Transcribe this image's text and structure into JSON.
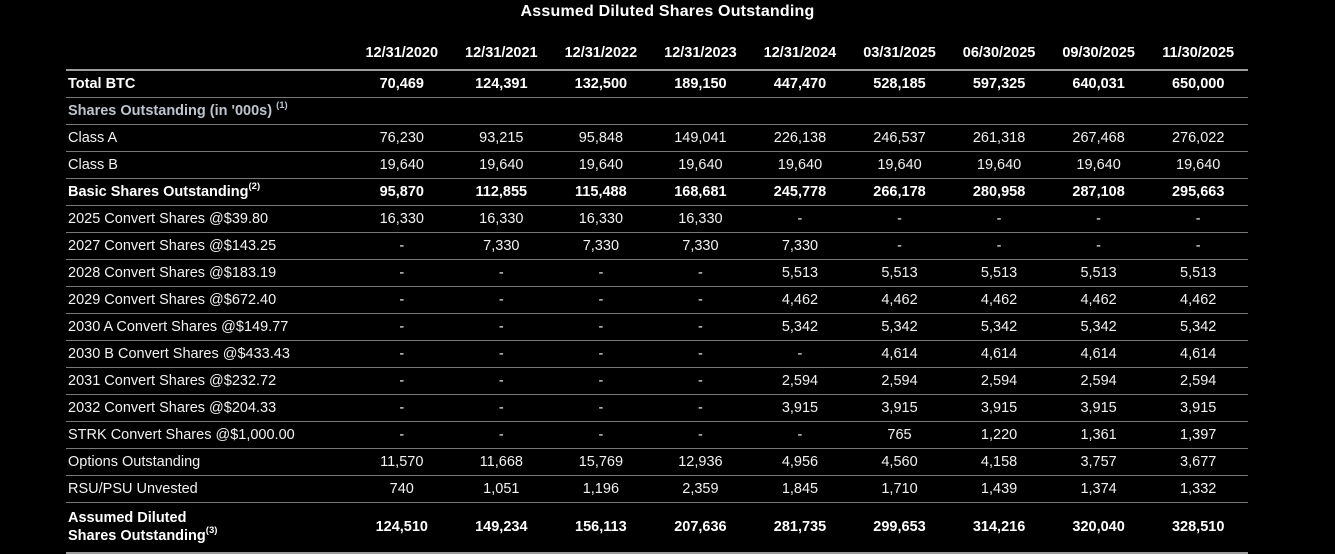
{
  "title": "Assumed Diluted Shares Outstanding",
  "colors": {
    "background": "#000000",
    "text": "#f2f2f2",
    "bold_text": "#ffffff",
    "section_header_text": "#bdc4ce",
    "grid_line": "#787878",
    "header_line": "#9c9c9c"
  },
  "chart_data": {
    "type": "table",
    "title": "Assumed Diluted Shares Outstanding",
    "units_note": "shares in '000s",
    "columns": [
      "12/31/2020",
      "12/31/2021",
      "12/31/2022",
      "12/31/2023",
      "12/31/2024",
      "03/31/2025",
      "06/30/2025",
      "09/30/2025",
      "11/30/2025"
    ],
    "rows": [
      {
        "label": "Total BTC",
        "row_type": "total",
        "values": [
          "70,469",
          "124,391",
          "132,500",
          "189,150",
          "447,470",
          "528,185",
          "597,325",
          "640,031",
          "650,000"
        ]
      },
      {
        "label": "Shares Outstanding (in '000s)",
        "sup": "(1)",
        "sup_gap": true,
        "row_type": "section",
        "values": []
      },
      {
        "label": "Class A",
        "row_type": "item",
        "values": [
          "76,230",
          "93,215",
          "95,848",
          "149,041",
          "226,138",
          "246,537",
          "261,318",
          "267,468",
          "276,022"
        ]
      },
      {
        "label": "Class B",
        "row_type": "item",
        "values": [
          "19,640",
          "19,640",
          "19,640",
          "19,640",
          "19,640",
          "19,640",
          "19,640",
          "19,640",
          "19,640"
        ]
      },
      {
        "label": "Basic Shares Outstanding",
        "sup": "(2)",
        "row_type": "subtotal",
        "values": [
          "95,870",
          "112,855",
          "115,488",
          "168,681",
          "245,778",
          "266,178",
          "280,958",
          "287,108",
          "295,663"
        ]
      },
      {
        "label": "2025 Convert Shares @$39.80",
        "row_type": "item",
        "values": [
          "16,330",
          "16,330",
          "16,330",
          "16,330",
          "-",
          "-",
          "-",
          "-",
          "-"
        ]
      },
      {
        "label": "2027 Convert Shares @$143.25",
        "row_type": "item",
        "values": [
          "-",
          "7,330",
          "7,330",
          "7,330",
          "7,330",
          "-",
          "-",
          "-",
          "-"
        ]
      },
      {
        "label": "2028 Convert Shares @$183.19",
        "row_type": "item",
        "values": [
          "-",
          "-",
          "-",
          "-",
          "5,513",
          "5,513",
          "5,513",
          "5,513",
          "5,513"
        ]
      },
      {
        "label": "2029 Convert Shares @$672.40",
        "row_type": "item",
        "values": [
          "-",
          "-",
          "-",
          "-",
          "4,462",
          "4,462",
          "4,462",
          "4,462",
          "4,462"
        ]
      },
      {
        "label": "2030 A Convert Shares @$149.77",
        "row_type": "item",
        "values": [
          "-",
          "-",
          "-",
          "-",
          "5,342",
          "5,342",
          "5,342",
          "5,342",
          "5,342"
        ]
      },
      {
        "label": "2030 B Convert Shares @$433.43",
        "row_type": "item",
        "values": [
          "-",
          "-",
          "-",
          "-",
          "-",
          "4,614",
          "4,614",
          "4,614",
          "4,614"
        ]
      },
      {
        "label": "2031 Convert Shares @$232.72",
        "row_type": "item",
        "values": [
          "-",
          "-",
          "-",
          "-",
          "2,594",
          "2,594",
          "2,594",
          "2,594",
          "2,594"
        ]
      },
      {
        "label": "2032 Convert Shares @$204.33",
        "row_type": "item",
        "values": [
          "-",
          "-",
          "-",
          "-",
          "3,915",
          "3,915",
          "3,915",
          "3,915",
          "3,915"
        ]
      },
      {
        "label": "STRK Convert Shares @$1,000.00",
        "row_type": "item",
        "values": [
          "-",
          "-",
          "-",
          "-",
          "-",
          "765",
          "1,220",
          "1,361",
          "1,397"
        ]
      },
      {
        "label": "Options Outstanding",
        "row_type": "item",
        "values": [
          "11,570",
          "11,668",
          "15,769",
          "12,936",
          "4,956",
          "4,560",
          "4,158",
          "3,757",
          "3,677"
        ]
      },
      {
        "label": "RSU/PSU Unvested",
        "row_type": "item",
        "values": [
          "740",
          "1,051",
          "1,196",
          "2,359",
          "1,845",
          "1,710",
          "1,439",
          "1,374",
          "1,332"
        ]
      },
      {
        "label": "Assumed Diluted Shares Outstanding",
        "label_lines": [
          "Assumed Diluted",
          "Shares Outstanding"
        ],
        "sup": "(3)",
        "row_type": "grand-total",
        "values": [
          "124,510",
          "149,234",
          "156,113",
          "207,636",
          "281,735",
          "299,653",
          "314,216",
          "320,040",
          "328,510"
        ]
      }
    ]
  }
}
